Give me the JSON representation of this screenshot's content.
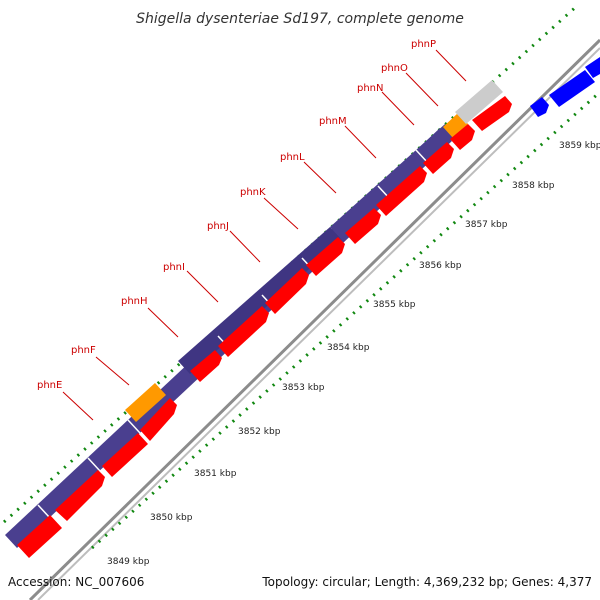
{
  "title": "Shigella dysenteriae Sd197, complete genome",
  "accession": "Accession: NC_007606",
  "topology": "Topology: circular; Length: 4,369,232 bp; Genes: 4,377",
  "colors": {
    "background": "#ffffff",
    "backbone": "#999999",
    "forward_cds": "#ff0000",
    "operon_purple": "#483d8b",
    "orange_feature": "#ff9900",
    "grey_feature": "#cccccc",
    "blue_feature": "#0000ff",
    "ticks": "#008000",
    "gene_label": "#cc0000",
    "leader_line": "#cc0000"
  },
  "genes": [
    {
      "name": "phnE"
    },
    {
      "name": "phnF"
    },
    {
      "name": "phnH"
    },
    {
      "name": "phnI"
    },
    {
      "name": "phnJ"
    },
    {
      "name": "phnK"
    },
    {
      "name": "phnL"
    },
    {
      "name": "phnM"
    },
    {
      "name": "phnN"
    },
    {
      "name": "phnO"
    },
    {
      "name": "phnP"
    }
  ],
  "kbp_ticks": [
    "3849 kbp",
    "3850 kbp",
    "3851 kbp",
    "3852 kbp",
    "3853 kbp",
    "3854 kbp",
    "3855 kbp",
    "3856 kbp",
    "3857 kbp",
    "3858 kbp",
    "3859 kbp"
  ]
}
